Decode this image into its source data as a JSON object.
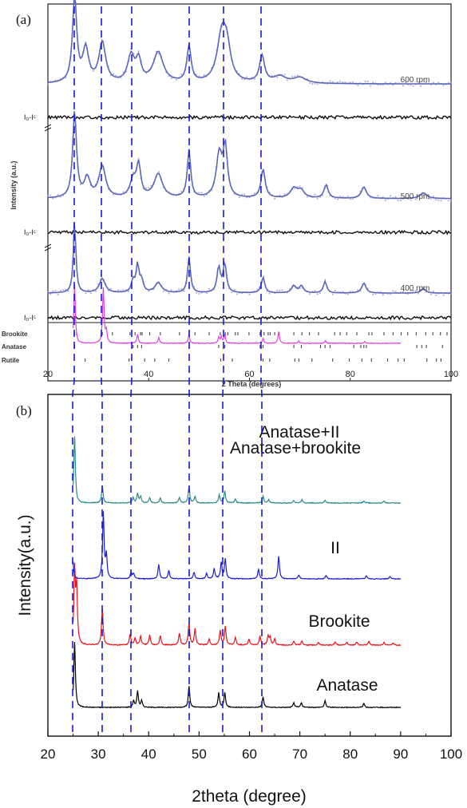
{
  "chart_data": [
    {
      "panel": "(a)",
      "type": "line",
      "xlabel": "2 Theta (degrees)",
      "ylabel": "Intensity (a.u.)",
      "xlim": [
        20,
        100
      ],
      "xticks": [
        "20",
        "40",
        "60",
        "80",
        "100"
      ],
      "series": [
        {
          "name": "600 rpm",
          "color": "#5a66b8",
          "difference_label": "I₀-Iᶜ",
          "baseline": 0.19,
          "noise": 0.012,
          "peaks": [
            [
              25.3,
              0.9,
              0.5
            ],
            [
              27.5,
              0.35,
              0.7
            ],
            [
              30.8,
              0.42,
              0.8
            ],
            [
              36.5,
              0.28,
              0.8
            ],
            [
              38.0,
              0.22,
              0.6
            ],
            [
              41.9,
              0.32,
              1.2
            ],
            [
              48.0,
              0.38,
              0.5
            ],
            [
              54.5,
              0.48,
              1.1
            ],
            [
              55.5,
              0.3,
              0.9
            ],
            [
              62.5,
              0.28,
              0.6
            ],
            [
              66.0,
              0.07,
              1.5
            ],
            [
              70.0,
              0.06,
              1.5
            ]
          ]
        },
        {
          "name": "500 rpm",
          "color": "#5a66b8",
          "difference_label": "I₀-Iᶜ",
          "baseline": 0.16,
          "noise": 0.01,
          "peaks": [
            [
              25.3,
              0.9,
              0.45
            ],
            [
              27.8,
              0.2,
              0.7
            ],
            [
              30.8,
              0.33,
              0.8
            ],
            [
              36.9,
              0.18,
              0.7
            ],
            [
              38.0,
              0.33,
              0.5
            ],
            [
              41.9,
              0.25,
              1.0
            ],
            [
              48.0,
              0.5,
              0.4
            ],
            [
              54.0,
              0.45,
              0.7
            ],
            [
              55.2,
              0.5,
              0.5
            ],
            [
              62.7,
              0.3,
              0.5
            ],
            [
              68.8,
              0.1,
              0.8
            ],
            [
              70.2,
              0.08,
              0.8
            ],
            [
              75.2,
              0.14,
              0.5
            ],
            [
              82.7,
              0.12,
              0.6
            ],
            [
              94.5,
              0.06,
              0.8
            ]
          ]
        },
        {
          "name": "400 rpm",
          "color": "#5a66b8",
          "difference_label": "I₀-Iᶜ",
          "baseline": 0.12,
          "noise": 0.008,
          "peaks": [
            [
              25.3,
              1.0,
              0.3
            ],
            [
              30.8,
              0.2,
              0.7
            ],
            [
              36.9,
              0.16,
              0.4
            ],
            [
              37.8,
              0.38,
              0.35
            ],
            [
              38.6,
              0.16,
              0.4
            ],
            [
              41.9,
              0.14,
              0.8
            ],
            [
              48.0,
              0.5,
              0.35
            ],
            [
              53.9,
              0.35,
              0.4
            ],
            [
              55.1,
              0.4,
              0.4
            ],
            [
              62.7,
              0.22,
              0.4
            ],
            [
              68.8,
              0.1,
              0.5
            ],
            [
              70.3,
              0.1,
              0.5
            ],
            [
              75.0,
              0.16,
              0.4
            ],
            [
              82.7,
              0.14,
              0.5
            ],
            [
              94.5,
              0.06,
              0.6
            ]
          ]
        }
      ],
      "phase_markers": [
        {
          "name": "Brookite",
          "positions": [
            25.3,
            25.7,
            30.8,
            32.8,
            36.3,
            37.3,
            38.4,
            38.7,
            40.2,
            42.3,
            46.1,
            48.0,
            49.2,
            52.0,
            54.2,
            55.2,
            55.7,
            57.2,
            57.7,
            59.9,
            62.1,
            62.9,
            63.7,
            64.1,
            65.0,
            65.9,
            68.8,
            70.4,
            71.9,
            73.7,
            76.9,
            78.0,
            79.3,
            81.3,
            83.7,
            84.3,
            86.7,
            88.5,
            90.1,
            91.4,
            93.1,
            95.0,
            96.4,
            97.9,
            99.2
          ]
        },
        {
          "name": "Anatase",
          "positions": [
            25.3,
            36.9,
            37.8,
            38.6,
            48.0,
            53.9,
            55.1,
            62.1,
            62.7,
            68.8,
            70.3,
            74.1,
            75.0,
            76.0,
            80.7,
            82.1,
            82.7,
            83.2,
            93.2,
            94.2,
            95.1,
            98.3
          ]
        },
        {
          "name": "Rutile",
          "positions": [
            27.4,
            36.1,
            39.2,
            41.2,
            44.0,
            54.3,
            56.6,
            62.7,
            64.0,
            69.0,
            69.8,
            72.4,
            76.5,
            79.8,
            82.3,
            84.2,
            87.4,
            89.5,
            90.7,
            95.2,
            97.1,
            98.0
          ]
        }
      ]
    },
    {
      "panel": "(b)",
      "type": "line",
      "xlabel": "2theta (degree)",
      "ylabel": "Intensity(a.u.)",
      "xlim": [
        20,
        100
      ],
      "xticks": [
        "20",
        "30",
        "40",
        "50",
        "60",
        "70",
        "80",
        "90",
        "100"
      ],
      "x_data_range": [
        25,
        90
      ],
      "series": [
        {
          "name": "Anatase",
          "color": "#000000",
          "peaks": [
            [
              25.3,
              1.0
            ],
            [
              37.0,
              0.1
            ],
            [
              37.8,
              0.25
            ],
            [
              38.6,
              0.1
            ],
            [
              48.0,
              0.32
            ],
            [
              53.9,
              0.22
            ],
            [
              55.1,
              0.23
            ],
            [
              62.7,
              0.16
            ],
            [
              68.8,
              0.07
            ],
            [
              70.3,
              0.07
            ],
            [
              75.0,
              0.1
            ],
            [
              82.7,
              0.06
            ]
          ]
        },
        {
          "name": "Brookite",
          "color": "#e8141c",
          "peaks": [
            [
              25.3,
              1.0
            ],
            [
              25.7,
              0.75
            ],
            [
              30.8,
              0.5
            ],
            [
              36.3,
              0.14
            ],
            [
              37.3,
              0.1
            ],
            [
              38.4,
              0.12
            ],
            [
              40.2,
              0.14
            ],
            [
              42.3,
              0.13
            ],
            [
              46.1,
              0.16
            ],
            [
              48.0,
              0.3
            ],
            [
              49.2,
              0.22
            ],
            [
              52.0,
              0.08
            ],
            [
              54.2,
              0.2
            ],
            [
              55.2,
              0.25
            ],
            [
              57.2,
              0.1
            ],
            [
              59.9,
              0.08
            ],
            [
              62.1,
              0.12
            ],
            [
              63.7,
              0.12
            ],
            [
              64.1,
              0.1
            ],
            [
              65.0,
              0.08
            ],
            [
              68.8,
              0.05
            ],
            [
              70.4,
              0.06
            ],
            [
              73.7,
              0.04
            ],
            [
              77.0,
              0.04
            ],
            [
              79.3,
              0.04
            ],
            [
              81.3,
              0.04
            ],
            [
              83.7,
              0.05
            ],
            [
              86.7,
              0.04
            ],
            [
              88.5,
              0.03
            ]
          ]
        },
        {
          "name": "II",
          "color": "#1c1cd4",
          "peaks": [
            [
              24.9,
              0.35
            ],
            [
              31.0,
              1.0
            ],
            [
              31.6,
              0.35
            ],
            [
              36.5,
              0.1
            ],
            [
              37.0,
              0.08
            ],
            [
              42.0,
              0.22
            ],
            [
              44.0,
              0.13
            ],
            [
              49.0,
              0.1
            ],
            [
              51.5,
              0.08
            ],
            [
              53.0,
              0.16
            ],
            [
              54.4,
              0.25
            ],
            [
              55.2,
              0.3
            ],
            [
              61.8,
              0.15
            ],
            [
              65.8,
              0.35
            ],
            [
              69.8,
              0.06
            ],
            [
              75.2,
              0.05
            ],
            [
              83.2,
              0.05
            ],
            [
              87.9,
              0.04
            ]
          ]
        },
        {
          "name": "Anatase+brookite",
          "color": "#2a8c8c",
          "peaks": [
            [
              25.3,
              1.0
            ],
            [
              30.8,
              0.25
            ],
            [
              36.9,
              0.08
            ],
            [
              37.8,
              0.14
            ],
            [
              38.4,
              0.1
            ],
            [
              40.2,
              0.08
            ],
            [
              42.3,
              0.07
            ],
            [
              46.1,
              0.08
            ],
            [
              48.0,
              0.25
            ],
            [
              49.2,
              0.1
            ],
            [
              54.0,
              0.12
            ],
            [
              55.1,
              0.18
            ],
            [
              57.2,
              0.06
            ],
            [
              62.7,
              0.1
            ],
            [
              63.8,
              0.05
            ],
            [
              68.8,
              0.04
            ],
            [
              70.4,
              0.05
            ],
            [
              75.0,
              0.04
            ],
            [
              82.7,
              0.03
            ],
            [
              86.7,
              0.03
            ]
          ]
        },
        {
          "name": "Anatase+II",
          "color": "#e040e0",
          "peaks": [
            [
              25.3,
              1.0
            ],
            [
              31.0,
              0.95
            ],
            [
              31.6,
              0.2
            ],
            [
              37.8,
              0.15
            ],
            [
              42.0,
              0.1
            ],
            [
              48.0,
              0.15
            ],
            [
              53.9,
              0.1
            ],
            [
              55.1,
              0.15
            ],
            [
              54.4,
              0.1
            ],
            [
              62.7,
              0.08
            ],
            [
              65.8,
              0.2
            ],
            [
              69.8,
              0.04
            ],
            [
              75.1,
              0.04
            ],
            [
              82.9,
              0.03
            ]
          ]
        }
      ]
    }
  ],
  "reference_lines": [
    25.3,
    30.8,
    36.5,
    48.0,
    55.1,
    62.7
  ]
}
